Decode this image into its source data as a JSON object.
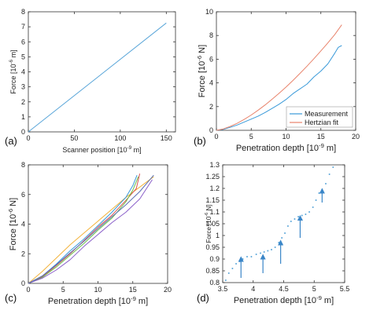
{
  "chart_data": [
    {
      "panel": "(a)",
      "type": "line",
      "xlabel": "Scanner position [10^-9 m]",
      "ylabel": "Force [10^-6 m]",
      "xlim": [
        0,
        160
      ],
      "ylim": [
        0,
        8
      ],
      "xticks": [
        0,
        50,
        100,
        150
      ],
      "yticks": [
        0,
        1,
        2,
        3,
        4,
        5,
        6,
        7,
        8
      ],
      "series": [
        {
          "color": "#5aa6d9",
          "x": [
            0,
            150
          ],
          "y": [
            0,
            7.25
          ]
        }
      ]
    },
    {
      "panel": "(b)",
      "type": "line",
      "xlabel": "Penetration depth [10^-9 m]",
      "ylabel": "Force [10^-6 N]",
      "xlim": [
        0,
        20
      ],
      "ylim": [
        0,
        10
      ],
      "xticks": [
        0,
        5,
        10,
        15,
        20
      ],
      "yticks": [
        0,
        2,
        4,
        6,
        8,
        10
      ],
      "legend_position": "bottom-right",
      "series": [
        {
          "name": "Measurement",
          "color": "#3a9ad9",
          "x": [
            0,
            1,
            2,
            3,
            4,
            5,
            6,
            7,
            8,
            9,
            10,
            11,
            12,
            13,
            14,
            15,
            16,
            17,
            17.5,
            18
          ],
          "y": [
            0,
            0.08,
            0.25,
            0.45,
            0.7,
            0.95,
            1.2,
            1.5,
            1.85,
            2.2,
            2.6,
            3.1,
            3.5,
            3.9,
            4.5,
            5.0,
            5.6,
            6.5,
            7.0,
            7.15
          ]
        },
        {
          "name": "Hertzian fit",
          "color": "#e8836b",
          "x": [
            0,
            1,
            2,
            3,
            4,
            5,
            6,
            7,
            8,
            9,
            10,
            11,
            12,
            13,
            14,
            15,
            16,
            17,
            18
          ],
          "y": [
            0,
            0.12,
            0.33,
            0.6,
            0.92,
            1.29,
            1.7,
            2.14,
            2.62,
            3.12,
            3.65,
            4.21,
            4.8,
            5.41,
            6.04,
            6.7,
            7.37,
            8.07,
            8.9
          ]
        }
      ]
    },
    {
      "panel": "(c)",
      "type": "line",
      "xlabel": "Penetration depth [10^-9 m]",
      "ylabel": "Force [10^-6 N]",
      "xlim": [
        0,
        20
      ],
      "ylim": [
        0,
        8
      ],
      "xticks": [
        0,
        5,
        10,
        15,
        20
      ],
      "yticks": [
        0,
        2,
        4,
        6,
        8
      ],
      "series": [
        {
          "color": "#f2b23a",
          "x": [
            0,
            2,
            4,
            6,
            8,
            10,
            12,
            14,
            16,
            18
          ],
          "y": [
            0,
            0.8,
            1.7,
            2.6,
            3.4,
            4.2,
            5.0,
            5.8,
            6.5,
            7.2
          ]
        },
        {
          "color": "#3a9ad9",
          "x": [
            0,
            2,
            4,
            6,
            8,
            10,
            12,
            14,
            15,
            15.6
          ],
          "y": [
            0,
            0.5,
            1.3,
            2.2,
            3.0,
            3.9,
            4.8,
            5.8,
            6.6,
            7.3
          ]
        },
        {
          "color": "#d9534f",
          "x": [
            0,
            2,
            4,
            6,
            8,
            10,
            12,
            14,
            15.5,
            16
          ],
          "y": [
            0,
            0.45,
            1.2,
            2.0,
            2.9,
            3.8,
            4.6,
            5.6,
            6.4,
            7.4
          ]
        },
        {
          "color": "#6cbf4b",
          "x": [
            0,
            2,
            4,
            6,
            8,
            10,
            12,
            14,
            15,
            15.8
          ],
          "y": [
            0,
            0.4,
            1.1,
            1.9,
            2.7,
            3.6,
            4.4,
            5.5,
            6.3,
            7.2
          ]
        },
        {
          "color": "#8a5fc9",
          "x": [
            0,
            2,
            4,
            6,
            8,
            10,
            12,
            14,
            16,
            17.8
          ],
          "y": [
            0,
            0.35,
            0.9,
            1.6,
            2.5,
            3.3,
            4.1,
            4.8,
            5.7,
            7.0
          ]
        },
        {
          "color": "#5b6fb3",
          "x": [
            0,
            2,
            4,
            6,
            8,
            10,
            12,
            14,
            16,
            18
          ],
          "y": [
            0,
            0.5,
            1.25,
            2.05,
            2.85,
            3.7,
            4.5,
            5.3,
            6.2,
            7.3
          ]
        }
      ]
    },
    {
      "panel": "(d)",
      "type": "scatter",
      "xlabel": "Penetration depth [10^-9 m]",
      "ylabel": "Force [10^-6 N]",
      "xlim": [
        3.5,
        5.5
      ],
      "ylim": [
        0.8,
        1.3
      ],
      "xticks": [
        3.5,
        4,
        4.5,
        5,
        5.5
      ],
      "yticks": [
        0.8,
        0.85,
        0.9,
        0.95,
        1,
        1.05,
        1.1,
        1.15,
        1.2,
        1.25,
        1.3
      ],
      "series": [
        {
          "color": "#5aa6d9",
          "x": [
            3.55,
            3.6,
            3.66,
            3.72,
            3.78,
            3.83,
            3.9,
            3.97,
            4.05,
            4.12,
            4.18,
            4.24,
            4.3,
            4.36,
            4.42,
            4.47,
            4.52,
            4.57,
            4.62,
            4.68,
            4.74,
            4.8,
            4.86,
            4.92,
            4.98,
            5.03,
            5.08,
            5.13,
            5.19,
            5.25,
            5.31
          ],
          "y": [
            0.81,
            0.84,
            0.86,
            0.88,
            0.89,
            0.9,
            0.91,
            0.91,
            0.92,
            0.925,
            0.93,
            0.935,
            0.94,
            0.95,
            0.97,
            0.99,
            1.01,
            1.04,
            1.06,
            1.07,
            1.08,
            1.085,
            1.09,
            1.1,
            1.12,
            1.15,
            1.18,
            1.19,
            1.22,
            1.26,
            1.29
          ]
        }
      ],
      "arrows": [
        {
          "x": 3.8,
          "y_from": 0.82,
          "y_to": 0.9
        },
        {
          "x": 4.16,
          "y_from": 0.84,
          "y_to": 0.91
        },
        {
          "x": 4.45,
          "y_from": 0.88,
          "y_to": 0.97
        },
        {
          "x": 4.77,
          "y_from": 0.99,
          "y_to": 1.075
        },
        {
          "x": 5.13,
          "y_from": 1.14,
          "y_to": 1.19
        }
      ],
      "arrow_color": "#3a86c8"
    }
  ],
  "panel_labels": [
    "(a)",
    "(b)",
    "(c)",
    "(d)"
  ],
  "legend": {
    "measurement": "Measurement",
    "hertzian": "Hertzian fit"
  }
}
